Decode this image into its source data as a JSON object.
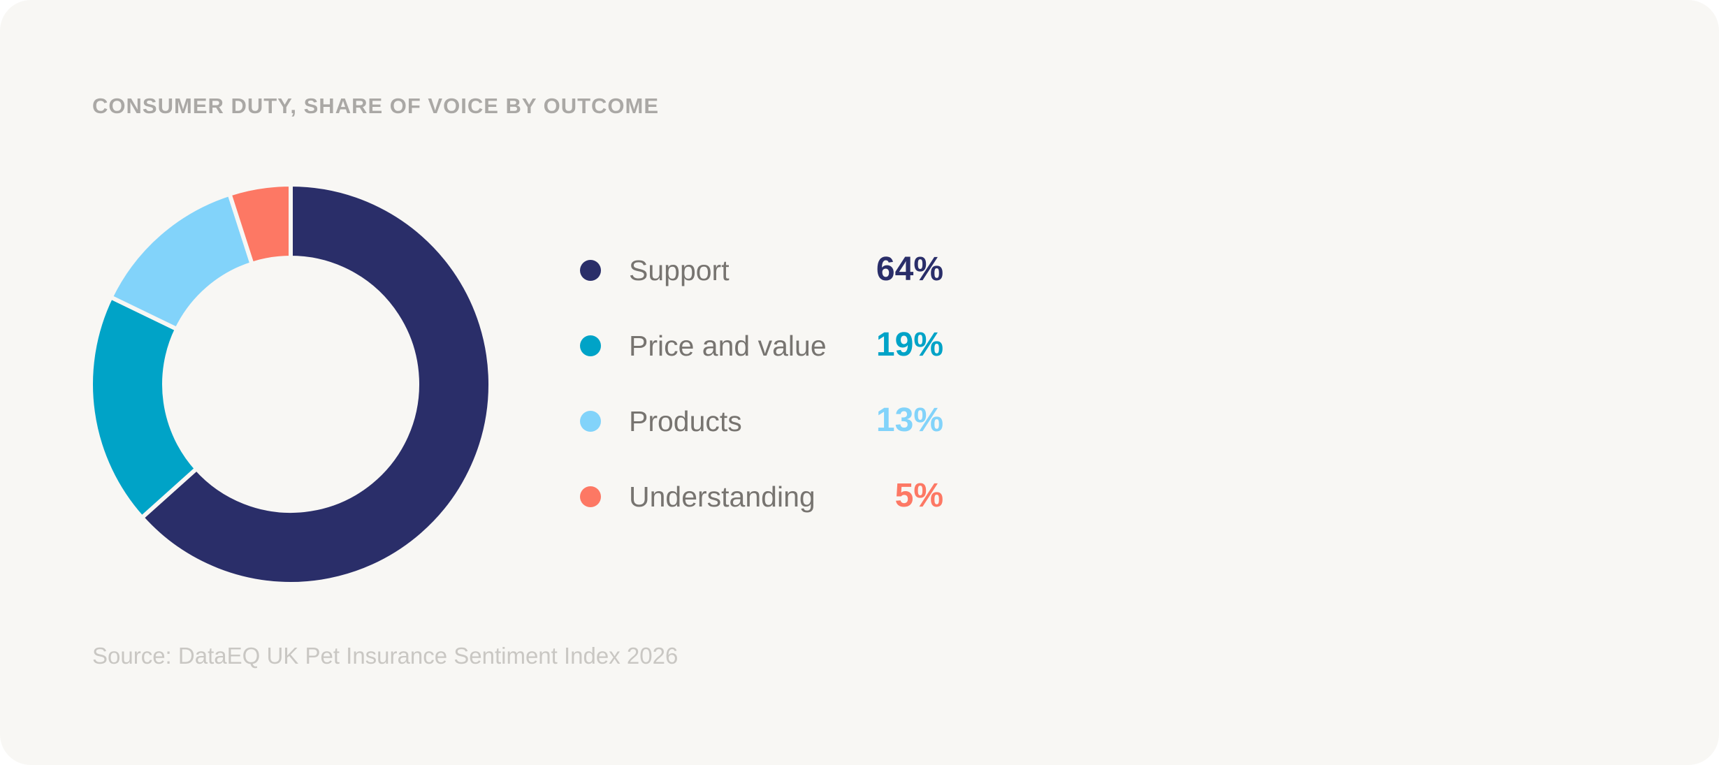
{
  "chart_data": {
    "type": "pie",
    "title": "CONSUMER DUTY, SHARE OF VOICE BY OUTCOME",
    "categories": [
      "Support",
      "Price and value",
      "Products",
      "Understanding"
    ],
    "values": [
      64,
      19,
      13,
      5
    ],
    "value_labels": [
      "64%",
      "19%",
      "13%",
      "5%"
    ],
    "colors": [
      "#2a2e69",
      "#00a3c7",
      "#82d3fa",
      "#fd7864"
    ],
    "legend_placement": "right",
    "style": "donut"
  },
  "source": "Source: DataEQ UK Pet Insurance Sentiment Index 2026"
}
